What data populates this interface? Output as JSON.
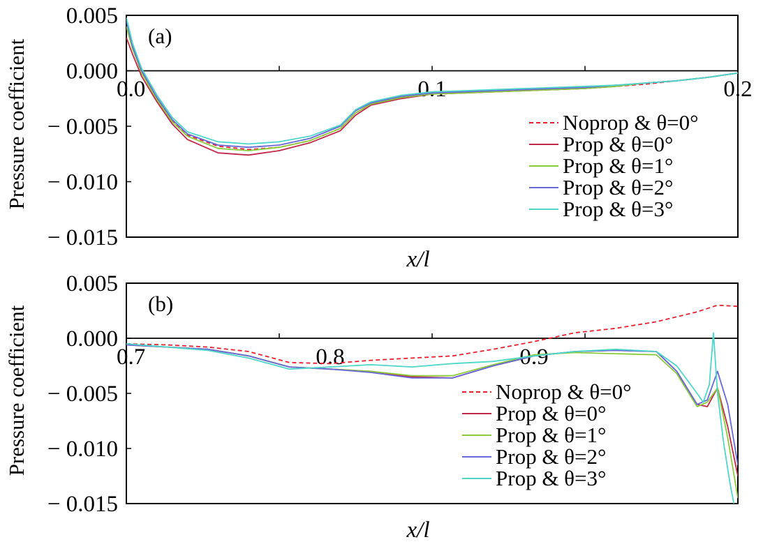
{
  "chart_data": [
    {
      "type": "line",
      "panel_label": "(a)",
      "xlabel": "x/l",
      "ylabel": "Pressure coefficient",
      "xlim": [
        0.0,
        0.2
      ],
      "ylim": [
        -0.015,
        0.005
      ],
      "x_ticks": [
        "0.0",
        "0.1",
        "0.2"
      ],
      "y_ticks": [
        "0.005",
        "0.000",
        "− 0.005",
        "− 0.010",
        "− 0.015"
      ],
      "legend_position": "right",
      "series": [
        {
          "name": "Noprop & θ=0°",
          "color": "#e8202e",
          "dashed": true,
          "x": [
            0.0,
            0.002,
            0.005,
            0.01,
            0.015,
            0.02,
            0.03,
            0.04,
            0.05,
            0.06,
            0.07,
            0.075,
            0.08,
            0.09,
            0.1,
            0.11,
            0.12,
            0.13,
            0.14,
            0.15,
            0.16,
            0.17,
            0.18,
            0.19,
            0.2
          ],
          "y": [
            0.004,
            0.002,
            0.0,
            -0.0025,
            -0.0045,
            -0.0058,
            -0.0068,
            -0.0071,
            -0.0069,
            -0.0063,
            -0.0052,
            -0.0038,
            -0.003,
            -0.0024,
            -0.0021,
            -0.002,
            -0.0019,
            -0.0018,
            -0.0017,
            -0.0016,
            -0.0014,
            -0.0012,
            -0.0009,
            -0.0006,
            -0.0002
          ]
        },
        {
          "name": "Prop & θ=0°",
          "color": "#c02848",
          "dashed": false,
          "x": [
            0.0,
            0.002,
            0.005,
            0.01,
            0.015,
            0.02,
            0.03,
            0.04,
            0.05,
            0.06,
            0.07,
            0.075,
            0.08,
            0.09,
            0.1,
            0.11,
            0.12,
            0.13,
            0.14,
            0.15,
            0.16,
            0.17,
            0.18,
            0.19,
            0.2
          ],
          "y": [
            0.003,
            0.0015,
            -0.0005,
            -0.0028,
            -0.0048,
            -0.0062,
            -0.0074,
            -0.0076,
            -0.0072,
            -0.0065,
            -0.0054,
            -0.004,
            -0.0031,
            -0.0025,
            -0.0021,
            -0.002,
            -0.0019,
            -0.0018,
            -0.0017,
            -0.0016,
            -0.0014,
            -0.0011,
            -0.0009,
            -0.0006,
            -0.0002
          ]
        },
        {
          "name": "Prop & θ=1°",
          "color": "#8ccc3a",
          "dashed": false,
          "x": [
            0.0,
            0.002,
            0.005,
            0.01,
            0.015,
            0.02,
            0.03,
            0.04,
            0.05,
            0.06,
            0.07,
            0.075,
            0.08,
            0.09,
            0.1,
            0.11,
            0.12,
            0.13,
            0.14,
            0.15,
            0.16,
            0.17,
            0.18,
            0.19,
            0.2
          ],
          "y": [
            0.004,
            0.002,
            -0.0002,
            -0.0026,
            -0.0046,
            -0.0059,
            -0.007,
            -0.0072,
            -0.0069,
            -0.0063,
            -0.0052,
            -0.0038,
            -0.003,
            -0.0024,
            -0.0021,
            -0.002,
            -0.0019,
            -0.0018,
            -0.0017,
            -0.0016,
            -0.0014,
            -0.0011,
            -0.0009,
            -0.0006,
            -0.0002
          ]
        },
        {
          "name": "Prop & θ=2°",
          "color": "#6868d8",
          "dashed": false,
          "x": [
            0.0,
            0.002,
            0.005,
            0.01,
            0.015,
            0.02,
            0.03,
            0.04,
            0.05,
            0.06,
            0.07,
            0.075,
            0.08,
            0.09,
            0.1,
            0.11,
            0.12,
            0.13,
            0.14,
            0.15,
            0.16,
            0.17,
            0.18,
            0.19,
            0.2
          ],
          "y": [
            0.0045,
            0.0022,
            0.0,
            -0.0024,
            -0.0044,
            -0.0057,
            -0.0067,
            -0.0069,
            -0.0067,
            -0.0061,
            -0.005,
            -0.0036,
            -0.0029,
            -0.0023,
            -0.002,
            -0.0019,
            -0.0018,
            -0.0017,
            -0.0016,
            -0.0015,
            -0.0013,
            -0.0011,
            -0.0009,
            -0.0006,
            -0.0002
          ]
        },
        {
          "name": "Prop & θ=3°",
          "color": "#4ed6c8",
          "dashed": false,
          "x": [
            0.0,
            0.002,
            0.005,
            0.01,
            0.015,
            0.02,
            0.03,
            0.04,
            0.05,
            0.06,
            0.07,
            0.075,
            0.08,
            0.09,
            0.1,
            0.11,
            0.12,
            0.13,
            0.14,
            0.15,
            0.16,
            0.17,
            0.18,
            0.19,
            0.2
          ],
          "y": [
            0.0048,
            0.0025,
            0.0002,
            -0.0022,
            -0.0042,
            -0.0055,
            -0.0064,
            -0.0066,
            -0.0064,
            -0.0059,
            -0.0049,
            -0.0035,
            -0.0028,
            -0.0022,
            -0.0019,
            -0.0018,
            -0.0017,
            -0.0016,
            -0.0015,
            -0.0014,
            -0.0013,
            -0.0011,
            -0.0009,
            -0.0006,
            -0.0002
          ]
        }
      ]
    },
    {
      "type": "line",
      "panel_label": "(b)",
      "xlabel": "x/l",
      "ylabel": "Pressure coefficient",
      "xlim": [
        0.7,
        1.0
      ],
      "ylim": [
        -0.015,
        0.005
      ],
      "x_ticks": [
        "0.7",
        "0.8",
        "0.9"
      ],
      "y_ticks": [
        "0.005",
        "0.000",
        "− 0.005",
        "− 0.010",
        "− 0.015"
      ],
      "legend_position": "lower-right",
      "series": [
        {
          "name": "Noprop & θ=0°",
          "color": "#e8202e",
          "dashed": true,
          "x": [
            0.7,
            0.72,
            0.74,
            0.76,
            0.78,
            0.8,
            0.82,
            0.84,
            0.86,
            0.88,
            0.9,
            0.92,
            0.94,
            0.96,
            0.98,
            0.99,
            1.0
          ],
          "y": [
            -0.0005,
            -0.0006,
            -0.0008,
            -0.0012,
            -0.0022,
            -0.0023,
            -0.002,
            -0.0018,
            -0.0016,
            -0.001,
            -0.0003,
            0.0005,
            0.0009,
            0.0015,
            0.0024,
            0.003,
            0.0029
          ]
        },
        {
          "name": "Prop & θ=0°",
          "color": "#c02848",
          "dashed": false,
          "x": [
            0.7,
            0.72,
            0.74,
            0.76,
            0.78,
            0.8,
            0.82,
            0.84,
            0.86,
            0.88,
            0.9,
            0.92,
            0.94,
            0.96,
            0.97,
            0.98,
            0.985,
            0.99,
            0.995,
            1.0
          ],
          "y": [
            -0.0006,
            -0.0008,
            -0.001,
            -0.0016,
            -0.0026,
            -0.0028,
            -0.003,
            -0.0035,
            -0.0036,
            -0.0025,
            -0.0016,
            -0.0012,
            -0.0011,
            -0.0012,
            -0.003,
            -0.006,
            -0.0062,
            -0.0045,
            -0.008,
            -0.0125
          ]
        },
        {
          "name": "Prop & θ=1°",
          "color": "#8ccc3a",
          "dashed": false,
          "x": [
            0.7,
            0.72,
            0.74,
            0.76,
            0.78,
            0.8,
            0.82,
            0.84,
            0.86,
            0.88,
            0.9,
            0.92,
            0.94,
            0.96,
            0.97,
            0.98,
            0.985,
            0.99,
            0.995,
            1.0
          ],
          "y": [
            -0.0006,
            -0.0008,
            -0.001,
            -0.0016,
            -0.0026,
            -0.0028,
            -0.003,
            -0.0034,
            -0.0034,
            -0.0024,
            -0.0015,
            -0.0013,
            -0.0014,
            -0.0015,
            -0.0032,
            -0.0062,
            -0.0058,
            -0.0045,
            -0.009,
            -0.0145
          ]
        },
        {
          "name": "Prop & θ=2°",
          "color": "#6868d8",
          "dashed": false,
          "x": [
            0.7,
            0.72,
            0.74,
            0.76,
            0.78,
            0.8,
            0.82,
            0.84,
            0.86,
            0.88,
            0.9,
            0.92,
            0.94,
            0.96,
            0.97,
            0.98,
            0.985,
            0.99,
            0.995,
            1.0
          ],
          "y": [
            -0.0006,
            -0.0008,
            -0.001,
            -0.0016,
            -0.0026,
            -0.0028,
            -0.0031,
            -0.0036,
            -0.0036,
            -0.0025,
            -0.0016,
            -0.0012,
            -0.0011,
            -0.0012,
            -0.003,
            -0.006,
            -0.0056,
            -0.003,
            -0.006,
            -0.0115
          ]
        },
        {
          "name": "Prop & θ=3°",
          "color": "#4ed6c8",
          "dashed": false,
          "x": [
            0.7,
            0.72,
            0.74,
            0.76,
            0.78,
            0.8,
            0.82,
            0.84,
            0.86,
            0.88,
            0.9,
            0.92,
            0.94,
            0.96,
            0.97,
            0.98,
            0.983,
            0.986,
            0.988,
            0.99,
            0.993,
            0.996,
            0.998
          ],
          "y": [
            -0.0005,
            -0.0008,
            -0.0011,
            -0.0018,
            -0.0028,
            -0.0026,
            -0.0024,
            -0.0026,
            -0.0023,
            -0.0021,
            -0.0016,
            -0.0012,
            -0.001,
            -0.0012,
            -0.0025,
            -0.005,
            -0.0058,
            -0.0042,
            0.0005,
            -0.005,
            -0.0095,
            -0.013,
            -0.015
          ]
        }
      ]
    }
  ]
}
